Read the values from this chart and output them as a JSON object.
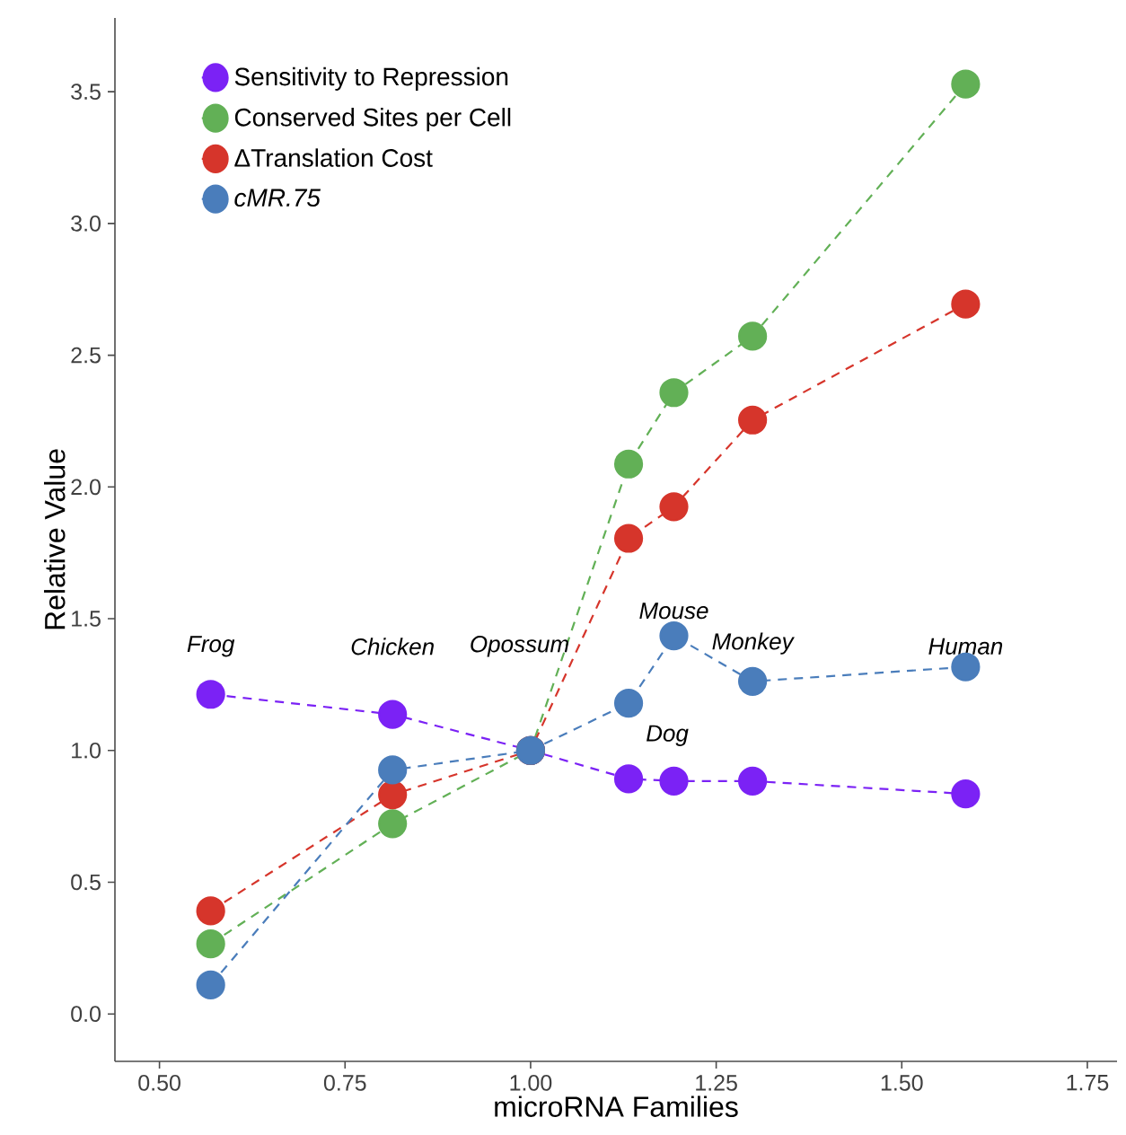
{
  "chart_data": {
    "type": "line",
    "xlabel": "microRNA Families",
    "ylabel": "Relative Value",
    "x": [
      0.569,
      0.814,
      1.0,
      1.132,
      1.193,
      1.299,
      1.586
    ],
    "series": [
      {
        "name": "Sensitivity to Repression",
        "color": "#7b22f5",
        "values": [
          1.213,
          1.137,
          1.0,
          0.892,
          0.884,
          0.884,
          0.835
        ]
      },
      {
        "name": "Conserved Sites per Cell",
        "color": "#62b056",
        "values": [
          0.266,
          0.722,
          1.0,
          2.087,
          2.358,
          2.572,
          3.529
        ]
      },
      {
        "name": "ΔTranslation Cost",
        "color": "#d6352b",
        "values": [
          0.391,
          0.832,
          1.0,
          1.805,
          1.925,
          2.254,
          2.694
        ]
      },
      {
        "name": "*cMR.75*",
        "color": "#4a7dbb",
        "values": [
          0.11,
          0.926,
          1.0,
          1.179,
          1.435,
          1.262,
          1.317
        ]
      }
    ],
    "xlim": [
      0.44,
      1.79
    ],
    "ylim": [
      -0.18,
      3.78
    ],
    "xticks": [
      {
        "value": 0.5,
        "label": "0.50"
      },
      {
        "value": 0.75,
        "label": "0.75"
      },
      {
        "value": 1.0,
        "label": "1.00"
      },
      {
        "value": 1.25,
        "label": "1.25"
      },
      {
        "value": 1.5,
        "label": "1.50"
      },
      {
        "value": 1.75,
        "label": "1.75"
      }
    ],
    "yticks": [
      {
        "value": 0,
        "label": "0.0"
      },
      {
        "value": 0.5,
        "label": "0.5"
      },
      {
        "value": 1.0,
        "label": "1.0"
      },
      {
        "value": 1.5,
        "label": "1.5"
      },
      {
        "value": 2.0,
        "label": "2.0"
      },
      {
        "value": 2.5,
        "label": "2.5"
      },
      {
        "value": 3.0,
        "label": "3.0"
      },
      {
        "value": 3.5,
        "label": "3.5"
      }
    ],
    "annotations": [
      "Frog",
      "Chicken",
      "Opossum",
      "Mouse",
      "Monkey",
      "Human",
      "Dog"
    ],
    "grid": false,
    "legend": "top left",
    "marker": "circle",
    "line_style": "dashed"
  }
}
